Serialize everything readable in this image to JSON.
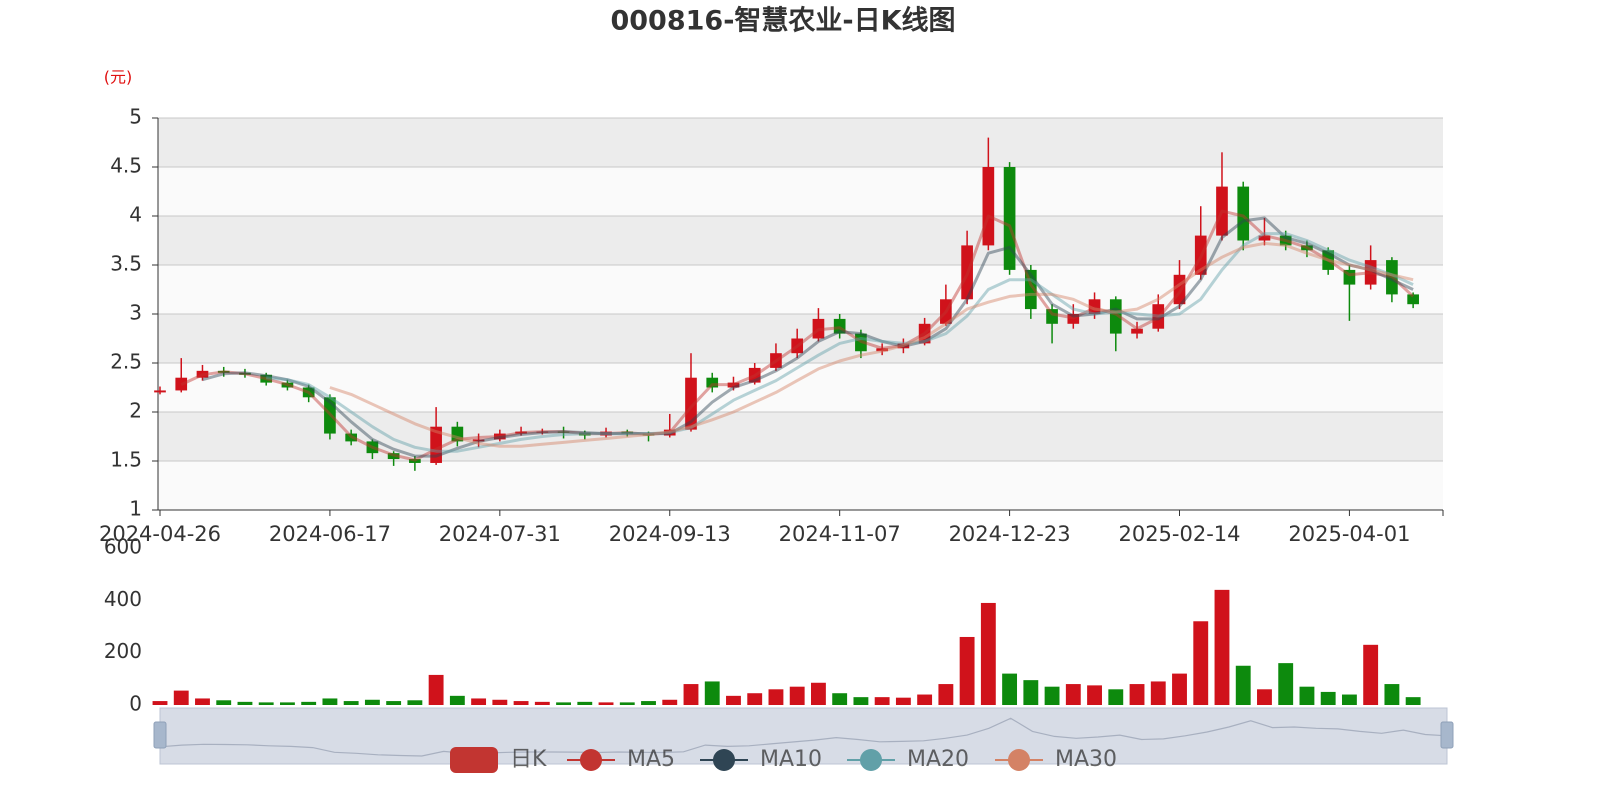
{
  "chart_data": {
    "type": "candlestick",
    "title": "000816-智慧农业-日K线图",
    "y_unit": "(元)",
    "grid": true,
    "categories": [
      "2024-04-26",
      null,
      null,
      null,
      null,
      null,
      null,
      null,
      "2024-06-17",
      null,
      null,
      null,
      null,
      null,
      null,
      null,
      "2024-07-31",
      null,
      null,
      null,
      null,
      null,
      null,
      null,
      "2024-09-13",
      null,
      null,
      null,
      null,
      null,
      null,
      null,
      "2024-11-07",
      null,
      null,
      null,
      null,
      null,
      null,
      null,
      "2024-12-23",
      null,
      null,
      null,
      null,
      null,
      null,
      null,
      "2025-02-14",
      null,
      null,
      null,
      null,
      null,
      null,
      null,
      "2025-04-01",
      null,
      null,
      null
    ],
    "ylim": [
      1,
      5
    ],
    "yticks": [
      1,
      1.5,
      2,
      2.5,
      3,
      3.5,
      4,
      4.5,
      5
    ],
    "candles": {
      "name": "日K",
      "color": "#c23531",
      "up_color": "#d0121b",
      "down_color": "#0d8a0d",
      "values": [
        [
          2.2,
          2.22,
          2.18,
          2.26
        ],
        [
          2.22,
          2.35,
          2.2,
          2.55
        ],
        [
          2.35,
          2.42,
          2.32,
          2.48
        ],
        [
          2.42,
          2.4,
          2.36,
          2.46
        ],
        [
          2.4,
          2.38,
          2.35,
          2.44
        ],
        [
          2.38,
          2.3,
          2.27,
          2.4
        ],
        [
          2.3,
          2.25,
          2.22,
          2.33
        ],
        [
          2.25,
          2.15,
          2.1,
          2.28
        ],
        [
          2.15,
          1.78,
          1.72,
          2.18
        ],
        [
          1.78,
          1.7,
          1.66,
          1.82
        ],
        [
          1.7,
          1.58,
          1.52,
          1.72
        ],
        [
          1.58,
          1.52,
          1.45,
          1.6
        ],
        [
          1.52,
          1.48,
          1.4,
          1.55
        ],
        [
          1.48,
          1.85,
          1.46,
          2.05
        ],
        [
          1.85,
          1.7,
          1.65,
          1.9
        ],
        [
          1.7,
          1.72,
          1.64,
          1.78
        ],
        [
          1.72,
          1.78,
          1.7,
          1.82
        ],
        [
          1.78,
          1.8,
          1.76,
          1.85
        ],
        [
          1.8,
          1.8,
          1.77,
          1.83
        ],
        [
          1.8,
          1.79,
          1.73,
          1.85
        ],
        [
          1.79,
          1.76,
          1.72,
          1.81
        ],
        [
          1.76,
          1.8,
          1.74,
          1.84
        ],
        [
          1.8,
          1.78,
          1.75,
          1.82
        ],
        [
          1.78,
          1.76,
          1.7,
          1.8
        ],
        [
          1.76,
          1.82,
          1.74,
          1.98
        ],
        [
          1.82,
          2.35,
          1.8,
          2.6
        ],
        [
          2.35,
          2.25,
          2.2,
          2.4
        ],
        [
          2.25,
          2.3,
          2.22,
          2.36
        ],
        [
          2.3,
          2.45,
          2.28,
          2.5
        ],
        [
          2.45,
          2.6,
          2.42,
          2.7
        ],
        [
          2.6,
          2.75,
          2.55,
          2.85
        ],
        [
          2.75,
          2.95,
          2.72,
          3.06
        ],
        [
          2.95,
          2.8,
          2.75,
          3.0
        ],
        [
          2.8,
          2.62,
          2.55,
          2.84
        ],
        [
          2.62,
          2.65,
          2.58,
          2.7
        ],
        [
          2.65,
          2.7,
          2.6,
          2.75
        ],
        [
          2.7,
          2.9,
          2.68,
          2.96
        ],
        [
          2.9,
          3.15,
          2.88,
          3.3
        ],
        [
          3.15,
          3.7,
          3.1,
          3.85
        ],
        [
          3.7,
          4.5,
          3.65,
          4.8
        ],
        [
          4.5,
          3.45,
          3.4,
          4.55
        ],
        [
          3.45,
          3.05,
          2.95,
          3.5
        ],
        [
          3.05,
          2.9,
          2.7,
          3.1
        ],
        [
          2.9,
          3.0,
          2.85,
          3.1
        ],
        [
          3.0,
          3.15,
          2.95,
          3.22
        ],
        [
          3.15,
          2.8,
          2.62,
          3.18
        ],
        [
          2.8,
          2.85,
          2.75,
          2.92
        ],
        [
          2.85,
          3.1,
          2.82,
          3.2
        ],
        [
          3.1,
          3.4,
          3.05,
          3.55
        ],
        [
          3.4,
          3.8,
          3.35,
          4.1
        ],
        [
          3.8,
          4.3,
          3.75,
          4.65
        ],
        [
          4.3,
          3.75,
          3.65,
          4.35
        ],
        [
          3.75,
          3.8,
          3.7,
          3.98
        ],
        [
          3.8,
          3.7,
          3.65,
          3.85
        ],
        [
          3.7,
          3.65,
          3.58,
          3.75
        ],
        [
          3.65,
          3.45,
          3.4,
          3.68
        ],
        [
          3.45,
          3.3,
          2.93,
          3.5
        ],
        [
          3.3,
          3.55,
          3.25,
          3.7
        ],
        [
          3.55,
          3.2,
          3.12,
          3.58
        ],
        [
          3.2,
          3.1,
          3.06,
          3.22
        ]
      ]
    },
    "series": [
      {
        "name": "MA5",
        "color": "#c23531",
        "values": [
          null,
          2.28,
          2.38,
          2.41,
          2.39,
          2.34,
          2.28,
          2.2,
          1.98,
          1.75,
          1.64,
          1.56,
          1.51,
          1.62,
          1.72,
          1.74,
          1.75,
          1.79,
          1.8,
          1.8,
          1.78,
          1.78,
          1.79,
          1.77,
          1.79,
          2.05,
          2.28,
          2.28,
          2.37,
          2.52,
          2.67,
          2.84,
          2.86,
          2.72,
          2.65,
          2.68,
          2.8,
          3.02,
          3.4,
          4.0,
          3.9,
          3.3,
          3.0,
          2.96,
          3.06,
          3.0,
          2.85,
          2.96,
          3.22,
          3.58,
          4.05,
          4.0,
          3.8,
          3.75,
          3.68,
          3.55,
          3.4,
          3.42,
          3.38,
          3.18
        ]
      },
      {
        "name": "MA10",
        "color": "#2f4554",
        "values": [
          null,
          null,
          2.33,
          2.39,
          2.4,
          2.37,
          2.33,
          2.26,
          2.1,
          1.9,
          1.72,
          1.62,
          1.55,
          1.55,
          1.63,
          1.7,
          1.74,
          1.77,
          1.79,
          1.8,
          1.79,
          1.78,
          1.78,
          1.78,
          1.78,
          1.9,
          2.1,
          2.25,
          2.32,
          2.42,
          2.55,
          2.72,
          2.82,
          2.8,
          2.72,
          2.67,
          2.72,
          2.85,
          3.15,
          3.62,
          3.68,
          3.4,
          3.1,
          2.98,
          3.0,
          3.05,
          2.95,
          2.95,
          3.08,
          3.35,
          3.78,
          3.95,
          3.98,
          3.78,
          3.72,
          3.62,
          3.5,
          3.45,
          3.35,
          3.25
        ]
      },
      {
        "name": "MA20",
        "color": "#61a0a8",
        "values": [
          null,
          null,
          null,
          null,
          null,
          2.35,
          2.33,
          2.28,
          2.15,
          2.0,
          1.85,
          1.72,
          1.64,
          1.6,
          1.6,
          1.64,
          1.68,
          1.72,
          1.75,
          1.77,
          1.78,
          1.78,
          1.78,
          1.78,
          1.79,
          1.84,
          1.98,
          2.12,
          2.22,
          2.32,
          2.45,
          2.58,
          2.7,
          2.75,
          2.72,
          2.7,
          2.72,
          2.8,
          2.98,
          3.25,
          3.35,
          3.35,
          3.2,
          3.05,
          3.0,
          3.02,
          3.0,
          2.98,
          3.0,
          3.15,
          3.45,
          3.7,
          3.82,
          3.82,
          3.75,
          3.65,
          3.55,
          3.48,
          3.4,
          3.3
        ]
      },
      {
        "name": "MA30",
        "color": "#d48265",
        "values": [
          null,
          null,
          null,
          null,
          null,
          null,
          null,
          null,
          2.25,
          2.18,
          2.08,
          1.98,
          1.88,
          1.8,
          1.74,
          1.68,
          1.65,
          1.65,
          1.67,
          1.69,
          1.71,
          1.73,
          1.75,
          1.77,
          1.8,
          1.85,
          1.92,
          2.0,
          2.1,
          2.2,
          2.32,
          2.44,
          2.52,
          2.58,
          2.62,
          2.68,
          2.76,
          2.9,
          3.05,
          3.12,
          3.18,
          3.2,
          3.2,
          3.15,
          3.05,
          3.02,
          3.05,
          3.15,
          3.3,
          3.45,
          3.58,
          3.68,
          3.72,
          3.7,
          3.62,
          3.55,
          3.5,
          3.45,
          3.4,
          3.35
        ]
      }
    ],
    "volume": {
      "ylim": [
        0,
        600
      ],
      "yticks": [
        0,
        200,
        400,
        600
      ],
      "values": [
        15,
        55,
        25,
        18,
        12,
        10,
        10,
        12,
        25,
        15,
        20,
        15,
        18,
        115,
        35,
        25,
        20,
        15,
        12,
        10,
        12,
        10,
        10,
        15,
        20,
        80,
        90,
        35,
        45,
        60,
        70,
        85,
        45,
        30,
        30,
        28,
        40,
        80,
        260,
        390,
        120,
        95,
        70,
        80,
        75,
        60,
        80,
        90,
        120,
        320,
        440,
        150,
        60,
        160,
        70,
        50,
        40,
        230,
        80,
        30
      ]
    }
  }
}
